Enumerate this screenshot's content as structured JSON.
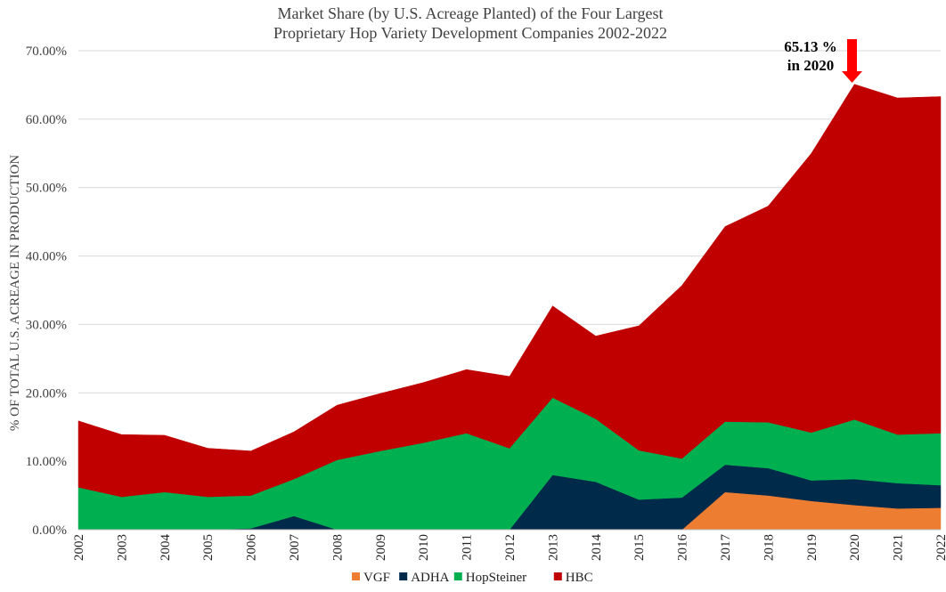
{
  "chart_data": {
    "type": "area",
    "stacked": true,
    "title": "Market Share (by U.S. Acreage Planted) of the Four Largest",
    "subtitle": "Proprietary Hop Variety Development Companies 2002-2022",
    "ylabel": "% OF TOTAL U.S. ACREAGE IN PRODUCTION",
    "xlabel": "",
    "ylim": [
      0,
      70
    ],
    "yticks": [
      "0.00%",
      "10.00%",
      "20.00%",
      "30.00%",
      "40.00%",
      "50.00%",
      "60.00%",
      "70.00%"
    ],
    "grid": true,
    "legend_position": "bottom",
    "categories": [
      "2002",
      "2003",
      "2004",
      "2005",
      "2006",
      "2007",
      "2008",
      "2009",
      "2010",
      "2011",
      "2012",
      "2013",
      "2014",
      "2015",
      "2016",
      "2017",
      "2018",
      "2019",
      "2020",
      "2021",
      "2022"
    ],
    "series": [
      {
        "name": "VGF",
        "color": "#ED7D31",
        "values": [
          0,
          0,
          0,
          0,
          0,
          0,
          0,
          0,
          0,
          0,
          0,
          0,
          0,
          0,
          0,
          5.5,
          5.0,
          4.2,
          3.6,
          3.1,
          3.2
        ]
      },
      {
        "name": "ADHA",
        "color": "#002A4A",
        "values": [
          0,
          0,
          0,
          0,
          0.2,
          2.0,
          0,
          0,
          0,
          0,
          0,
          8.0,
          7.0,
          4.4,
          4.7,
          4.0,
          4.0,
          3.0,
          3.8,
          3.7,
          3.3
        ]
      },
      {
        "name": "HopSteiner",
        "color": "#00B050",
        "values": [
          6.2,
          4.8,
          5.5,
          4.8,
          4.8,
          5.4,
          10.2,
          11.5,
          12.7,
          14.1,
          11.9,
          11.3,
          9.2,
          7.2,
          5.7,
          6.3,
          6.7,
          7.0,
          8.7,
          7.1,
          7.6
        ]
      },
      {
        "name": "HBC",
        "color": "#C00000",
        "values": [
          9.7,
          9.1,
          8.3,
          7.1,
          6.5,
          6.9,
          8.0,
          8.4,
          8.8,
          9.3,
          10.5,
          13.4,
          12.1,
          18.2,
          25.3,
          28.5,
          31.6,
          40.8,
          49.0,
          49.2,
          49.2
        ]
      }
    ],
    "annotation": {
      "line1": "65.13 %",
      "line2": "in 2020",
      "year": "2020",
      "value": 65.13,
      "arrow_color": "#FF0000"
    }
  }
}
